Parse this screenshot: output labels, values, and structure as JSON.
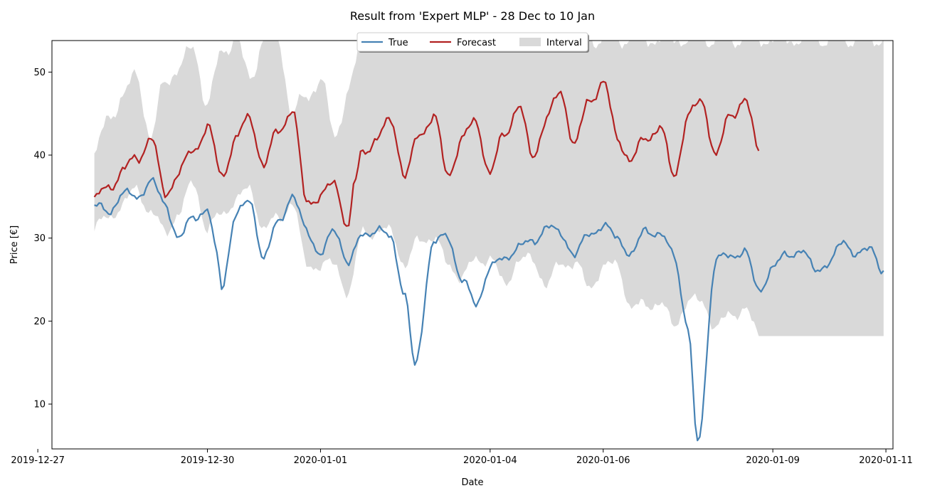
{
  "chart_data": {
    "type": "line",
    "title": "Result from 'Expert MLP' - 28 Dec to 10 Jan",
    "xlabel": "Date",
    "ylabel": "Price [€]",
    "x_start": "2019-12-28",
    "x_end": "2020-01-10 23:00",
    "xlim": [
      "2019-12-27 06:00",
      "2020-01-11 03:00"
    ],
    "ylim": [
      4.6,
      53.8
    ],
    "x_ticks": [
      "2019-12-27",
      "2019-12-30",
      "2020-01-01",
      "2020-01-04",
      "2020-01-06",
      "2020-01-09",
      "2020-01-11"
    ],
    "y_ticks": [
      10,
      20,
      30,
      40,
      50
    ],
    "grid": false,
    "legend": {
      "position": "top-center",
      "entries": [
        "True",
        "Forecast",
        "Interval"
      ]
    },
    "colors": {
      "true": "#4682b4",
      "forecast": "#b22222",
      "interval": "#d9d9d9"
    },
    "series": [
      {
        "name": "True",
        "points": [
          [
            "2019-12-28 00:00",
            34.0
          ],
          [
            "2019-12-28 06:00",
            33.0
          ],
          [
            "2019-12-28 12:00",
            35.5
          ],
          [
            "2019-12-28 18:00",
            34.8
          ],
          [
            "2019-12-29 00:00",
            37.0
          ],
          [
            "2019-12-29 06:00",
            34.0
          ],
          [
            "2019-12-29 12:00",
            30.0
          ],
          [
            "2019-12-29 18:00",
            32.5
          ],
          [
            "2019-12-30 00:00",
            33.5
          ],
          [
            "2019-12-30 04:00",
            28.0
          ],
          [
            "2019-12-30 06:00",
            24.0
          ],
          [
            "2019-12-30 12:00",
            32.8
          ],
          [
            "2019-12-30 18:00",
            34.5
          ],
          [
            "2019-12-31 00:00",
            27.5
          ],
          [
            "2019-12-31 06:00",
            32.0
          ],
          [
            "2019-12-31 12:00",
            35.0
          ],
          [
            "2019-12-31 18:00",
            31.0
          ],
          [
            "2020-01-01 00:00",
            28.0
          ],
          [
            "2020-01-01 06:00",
            31.0
          ],
          [
            "2020-01-01 12:00",
            27.0
          ],
          [
            "2020-01-01 18:00",
            30.5
          ],
          [
            "2020-01-02 00:00",
            31.0
          ],
          [
            "2020-01-02 06:00",
            30.0
          ],
          [
            "2020-01-02 12:00",
            23.0
          ],
          [
            "2020-01-02 16:00",
            14.4
          ],
          [
            "2020-01-03 00:00",
            29.5
          ],
          [
            "2020-01-03 06:00",
            30.2
          ],
          [
            "2020-01-03 12:00",
            25.0
          ],
          [
            "2020-01-03 18:00",
            22.0
          ],
          [
            "2020-01-04 00:00",
            26.5
          ],
          [
            "2020-01-04 06:00",
            27.5
          ],
          [
            "2020-01-04 12:00",
            29.0
          ],
          [
            "2020-01-04 18:00",
            29.5
          ],
          [
            "2020-01-05 00:00",
            31.4
          ],
          [
            "2020-01-05 06:00",
            30.5
          ],
          [
            "2020-01-05 12:00",
            28.0
          ],
          [
            "2020-01-05 18:00",
            30.5
          ],
          [
            "2020-01-06 00:00",
            31.5
          ],
          [
            "2020-01-06 06:00",
            30.0
          ],
          [
            "2020-01-06 12:00",
            28.0
          ],
          [
            "2020-01-06 18:00",
            31.0
          ],
          [
            "2020-01-07 00:00",
            30.5
          ],
          [
            "2020-01-07 06:00",
            28.0
          ],
          [
            "2020-01-07 12:00",
            19.3
          ],
          [
            "2020-01-07 16:00",
            5.0
          ],
          [
            "2020-01-08 00:00",
            27.5
          ],
          [
            "2020-01-08 06:00",
            27.8
          ],
          [
            "2020-01-08 12:00",
            28.5
          ],
          [
            "2020-01-08 18:00",
            23.6
          ],
          [
            "2020-01-09 00:00",
            26.5
          ],
          [
            "2020-01-09 06:00",
            28.0
          ],
          [
            "2020-01-09 12:00",
            28.5
          ],
          [
            "2020-01-09 18:00",
            26.2
          ],
          [
            "2020-01-10 00:00",
            27.0
          ],
          [
            "2020-01-10 06:00",
            29.6
          ],
          [
            "2020-01-10 12:00",
            28.0
          ],
          [
            "2020-01-10 18:00",
            28.7
          ],
          [
            "2020-01-10 23:00",
            26.0
          ]
        ]
      },
      {
        "name": "Forecast",
        "points": [
          [
            "2019-12-28 00:00",
            34.7
          ],
          [
            "2019-12-28 06:00",
            36.0
          ],
          [
            "2019-12-28 12:00",
            38.2
          ],
          [
            "2019-12-28 18:00",
            39.5
          ],
          [
            "2019-12-29 00:00",
            42.2
          ],
          [
            "2019-12-29 06:00",
            35.3
          ],
          [
            "2019-12-29 12:00",
            38.0
          ],
          [
            "2019-12-29 18:00",
            40.5
          ],
          [
            "2019-12-30 00:00",
            43.5
          ],
          [
            "2019-12-30 06:00",
            37.4
          ],
          [
            "2019-12-30 12:00",
            42.0
          ],
          [
            "2019-12-30 18:00",
            44.5
          ],
          [
            "2019-12-31 00:00",
            38.7
          ],
          [
            "2019-12-31 06:00",
            43.0
          ],
          [
            "2019-12-31 12:00",
            45.5
          ],
          [
            "2019-12-31 18:00",
            34.5
          ],
          [
            "2020-01-01 00:00",
            35.0
          ],
          [
            "2020-01-01 06:00",
            36.6
          ],
          [
            "2020-01-01 12:00",
            31.2
          ],
          [
            "2020-01-01 14:00",
            36.0
          ],
          [
            "2020-01-01 18:00",
            40.5
          ],
          [
            "2020-01-02 00:00",
            42.0
          ],
          [
            "2020-01-02 06:00",
            44.2
          ],
          [
            "2020-01-02 12:00",
            37.5
          ],
          [
            "2020-01-02 18:00",
            42.5
          ],
          [
            "2020-01-03 00:00",
            44.8
          ],
          [
            "2020-01-03 06:00",
            37.5
          ],
          [
            "2020-01-03 12:00",
            42.0
          ],
          [
            "2020-01-03 18:00",
            44.0
          ],
          [
            "2020-01-04 00:00",
            37.8
          ],
          [
            "2020-01-04 06:00",
            42.5
          ],
          [
            "2020-01-04 12:00",
            46.0
          ],
          [
            "2020-01-04 18:00",
            39.8
          ],
          [
            "2020-01-05 00:00",
            44.5
          ],
          [
            "2020-01-05 06:00",
            47.5
          ],
          [
            "2020-01-05 12:00",
            41.3
          ],
          [
            "2020-01-05 18:00",
            46.5
          ],
          [
            "2020-01-06 00:00",
            48.9
          ],
          [
            "2020-01-06 06:00",
            42.0
          ],
          [
            "2020-01-06 12:00",
            39.4
          ],
          [
            "2020-01-06 18:00",
            42.0
          ],
          [
            "2020-01-07 00:00",
            43.5
          ],
          [
            "2020-01-07 06:00",
            37.4
          ],
          [
            "2020-01-07 12:00",
            44.8
          ],
          [
            "2020-01-07 18:00",
            46.4
          ],
          [
            "2020-01-08 00:00",
            40.0
          ],
          [
            "2020-01-08 06:00",
            44.8
          ],
          [
            "2020-01-08 12:00",
            46.8
          ],
          [
            "2020-01-08 18:00",
            40.5
          ]
        ]
      },
      {
        "name": "Interval",
        "lower": [
          [
            "2019-12-28 00:00",
            31.2
          ],
          [
            "2019-12-28 06:00",
            32.5
          ],
          [
            "2019-12-28 12:00",
            34.0
          ],
          [
            "2019-12-28 18:00",
            36.0
          ],
          [
            "2019-12-29 00:00",
            33.0
          ],
          [
            "2019-12-29 06:00",
            30.8
          ],
          [
            "2019-12-29 12:00",
            33.0
          ],
          [
            "2019-12-29 18:00",
            36.8
          ],
          [
            "2019-12-30 00:00",
            31.0
          ],
          [
            "2019-12-30 06:00",
            33.0
          ],
          [
            "2019-12-30 12:00",
            34.5
          ],
          [
            "2019-12-30 18:00",
            36.0
          ],
          [
            "2019-12-31 00:00",
            31.0
          ],
          [
            "2019-12-31 06:00",
            32.5
          ],
          [
            "2019-12-31 12:00",
            34.2
          ],
          [
            "2019-12-31 18:00",
            27.0
          ],
          [
            "2020-01-01 00:00",
            26.5
          ],
          [
            "2020-01-01 06:00",
            27.0
          ],
          [
            "2020-01-01 12:00",
            23.2
          ],
          [
            "2020-01-01 18:00",
            31.0
          ],
          [
            "2020-01-02 00:00",
            30.5
          ],
          [
            "2020-01-02 06:00",
            31.0
          ],
          [
            "2020-01-02 12:00",
            26.5
          ],
          [
            "2020-01-02 18:00",
            30.0
          ],
          [
            "2020-01-03 00:00",
            30.0
          ],
          [
            "2020-01-03 06:00",
            27.0
          ],
          [
            "2020-01-03 12:00",
            25.2
          ],
          [
            "2020-01-03 18:00",
            27.5
          ],
          [
            "2020-01-04 00:00",
            27.5
          ],
          [
            "2020-01-04 06:00",
            24.5
          ],
          [
            "2020-01-04 12:00",
            27.2
          ],
          [
            "2020-01-04 18:00",
            27.5
          ],
          [
            "2020-01-05 00:00",
            24.3
          ],
          [
            "2020-01-05 06:00",
            27.0
          ],
          [
            "2020-01-05 12:00",
            27.0
          ],
          [
            "2020-01-05 18:00",
            24.0
          ],
          [
            "2020-01-06 00:00",
            26.5
          ],
          [
            "2020-01-06 06:00",
            26.8
          ],
          [
            "2020-01-06 12:00",
            21.5
          ],
          [
            "2020-01-06 18:00",
            22.0
          ],
          [
            "2020-01-07 00:00",
            22.2
          ],
          [
            "2020-01-07 06:00",
            19.5
          ],
          [
            "2020-01-07 12:00",
            22.4
          ],
          [
            "2020-01-07 18:00",
            22.3
          ],
          [
            "2020-01-08 00:00",
            19.2
          ],
          [
            "2020-01-08 06:00",
            20.8
          ],
          [
            "2020-01-08 12:00",
            21.5
          ],
          [
            "2020-01-08 18:00",
            18.3
          ]
        ],
        "upper": [
          [
            "2019-12-28 00:00",
            39.9
          ],
          [
            "2019-12-28 06:00",
            44.5
          ],
          [
            "2019-12-28 12:00",
            47.0
          ],
          [
            "2019-12-28 18:00",
            49.7
          ],
          [
            "2019-12-29 00:00",
            42.0
          ],
          [
            "2019-12-29 06:00",
            49.0
          ],
          [
            "2019-12-29 12:00",
            50.5
          ],
          [
            "2019-12-29 18:00",
            53.0
          ],
          [
            "2019-12-30 00:00",
            46.0
          ],
          [
            "2019-12-30 06:00",
            52.5
          ],
          [
            "2019-12-30 12:00",
            54.0
          ],
          [
            "2019-12-30 18:00",
            49.2
          ],
          [
            "2019-12-31 00:00",
            54.0
          ],
          [
            "2019-12-31 06:00",
            54.0
          ],
          [
            "2019-12-31 12:00",
            45.0
          ],
          [
            "2019-12-31 18:00",
            47.0
          ],
          [
            "2020-01-01 00:00",
            49.2
          ],
          [
            "2020-01-01 06:00",
            42.2
          ],
          [
            "2020-01-01 12:00",
            48.0
          ],
          [
            "2020-01-01 18:00",
            54.0
          ],
          [
            "2020-01-10 23:00",
            54.0
          ]
        ]
      }
    ]
  }
}
